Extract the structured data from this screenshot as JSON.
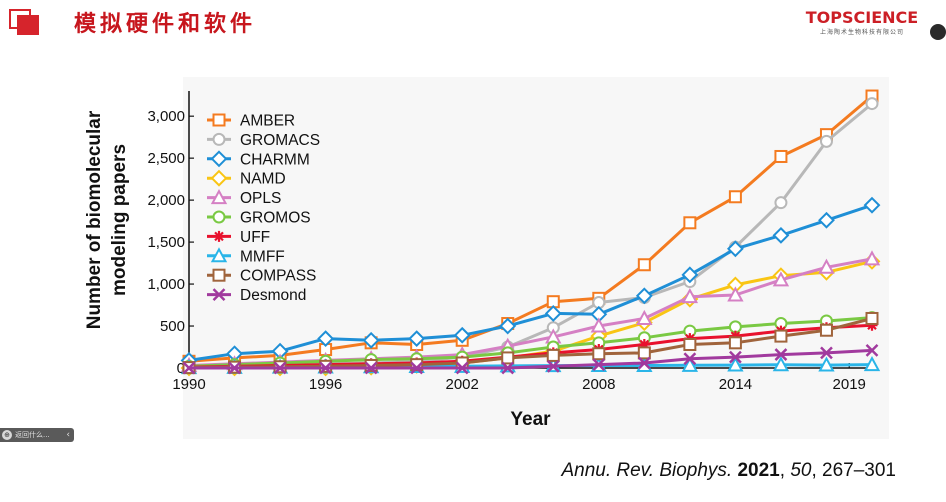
{
  "header": {
    "title": "模拟硬件和软件",
    "brand_name": "TOPSCIENCE",
    "brand_sub": "上海陶术生物科技有限公司"
  },
  "toolbar": {
    "text": "返回什么...",
    "arrow": "‹"
  },
  "citation": {
    "journal": "Annu. Rev. Biophys.",
    "year": "2021",
    "volume": "50",
    "pages": ", 267–301"
  },
  "chart_data": {
    "type": "line",
    "title": "",
    "xlabel": "Year",
    "ylabel": "Number of biomolecular modeling papers",
    "xlim": [
      1990,
      2020
    ],
    "ylim": [
      0,
      3300
    ],
    "xticks": [
      1990,
      1996,
      2002,
      2008,
      2014,
      2019
    ],
    "yticks": [
      0,
      500,
      1000,
      1500,
      2000,
      2500,
      3000
    ],
    "ytick_labels": [
      "0",
      "500",
      "1,000",
      "1,500",
      "2,000",
      "2,500",
      "3,000"
    ],
    "grid": false,
    "legend_position": "top-left",
    "x": [
      1990,
      1992,
      1994,
      1996,
      1998,
      2000,
      2002,
      2004,
      2006,
      2008,
      2010,
      2012,
      2014,
      2016,
      2018,
      2020
    ],
    "series": [
      {
        "name": "AMBER",
        "color": "#f47b20",
        "marker": "square",
        "values": [
          80,
          120,
          150,
          220,
          300,
          280,
          330,
          530,
          790,
          830,
          1230,
          1730,
          2040,
          2520,
          2780,
          3240
        ]
      },
      {
        "name": "GROMACS",
        "color": "#b8b8b8",
        "marker": "circle",
        "values": [
          10,
          20,
          30,
          50,
          60,
          80,
          130,
          250,
          480,
          780,
          840,
          1030,
          1440,
          1970,
          2700,
          3150
        ]
      },
      {
        "name": "CHARMM",
        "color": "#1f8fd6",
        "marker": "diamond",
        "values": [
          90,
          170,
          200,
          350,
          330,
          350,
          390,
          500,
          650,
          640,
          860,
          1110,
          1420,
          1580,
          1760,
          1940
        ]
      },
      {
        "name": "NAMD",
        "color": "#f9c514",
        "marker": "diamond",
        "values": [
          0,
          0,
          0,
          0,
          10,
          30,
          60,
          120,
          200,
          380,
          540,
          820,
          990,
          1100,
          1140,
          1270
        ]
      },
      {
        "name": "OPLS",
        "color": "#d580c4",
        "marker": "triangle",
        "values": [
          30,
          50,
          70,
          90,
          110,
          130,
          160,
          260,
          370,
          500,
          590,
          850,
          870,
          1050,
          1200,
          1300
        ]
      },
      {
        "name": "GROMOS",
        "color": "#7ac943",
        "marker": "circle",
        "values": [
          20,
          40,
          60,
          80,
          100,
          110,
          130,
          180,
          250,
          300,
          360,
          440,
          490,
          530,
          560,
          600
        ]
      },
      {
        "name": "UFF",
        "color": "#e8112d",
        "marker": "asterisk",
        "values": [
          10,
          20,
          30,
          40,
          50,
          60,
          80,
          130,
          180,
          220,
          280,
          350,
          380,
          440,
          480,
          510
        ]
      },
      {
        "name": "MMFF",
        "color": "#2ab5e8",
        "marker": "triangle",
        "values": [
          5,
          8,
          10,
          12,
          15,
          18,
          20,
          25,
          28,
          30,
          30,
          32,
          35,
          38,
          35,
          40
        ]
      },
      {
        "name": "COMPASS",
        "color": "#a0643c",
        "marker": "square",
        "values": [
          5,
          10,
          15,
          20,
          30,
          40,
          60,
          120,
          150,
          170,
          180,
          280,
          300,
          380,
          450,
          590
        ]
      },
      {
        "name": "Desmond",
        "color": "#a13a9e",
        "marker": "x",
        "values": [
          0,
          0,
          0,
          0,
          0,
          0,
          0,
          0,
          20,
          40,
          60,
          110,
          130,
          160,
          180,
          210
        ]
      }
    ]
  }
}
